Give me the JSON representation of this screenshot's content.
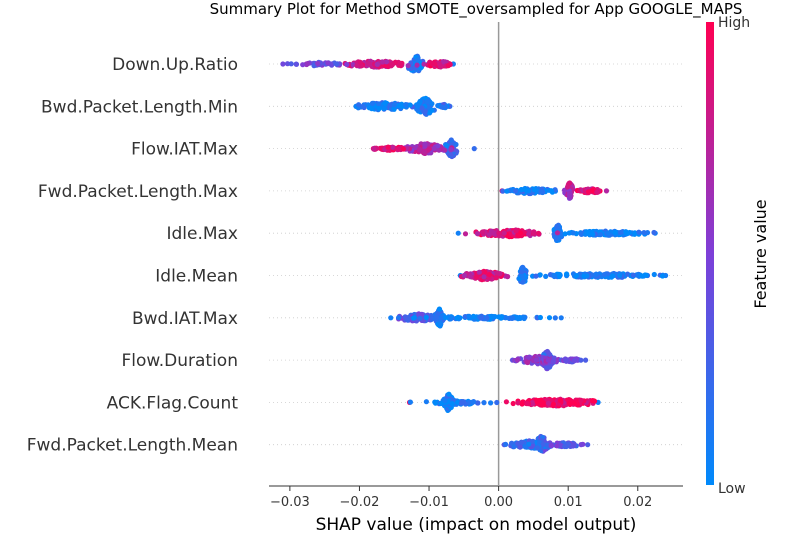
{
  "chart_data": {
    "type": "scatter",
    "title": "Summary Plot for Method SMOTE_oversampled for App GOOGLE_MAPS",
    "xlabel": "SHAP value (impact on model output)",
    "ylabel": "",
    "xlim": [
      -0.033,
      0.0265
    ],
    "x_ticks": [
      {
        "value": -0.03,
        "label": "−0.03"
      },
      {
        "value": -0.02,
        "label": "−0.02"
      },
      {
        "value": -0.01,
        "label": "−0.01"
      },
      {
        "value": 0.0,
        "label": "0.00"
      },
      {
        "value": 0.01,
        "label": "0.01"
      },
      {
        "value": 0.02,
        "label": "0.02"
      }
    ],
    "features": [
      {
        "name": "Down.Up.Ratio",
        "min": -0.031,
        "max": -0.0065,
        "clusters": [
          {
            "x": -0.0118,
            "w": 0.0012,
            "n": 55,
            "spread": 1.0,
            "fv": 0.1
          },
          {
            "x": -0.0175,
            "w": 0.005,
            "n": 120,
            "spread": 0.35,
            "fv": 0.78
          },
          {
            "x": -0.0085,
            "w": 0.0018,
            "n": 60,
            "spread": 0.35,
            "fv": 0.85
          },
          {
            "x": -0.026,
            "w": 0.0035,
            "n": 40,
            "spread": 0.2,
            "fv": 0.45
          }
        ]
      },
      {
        "name": "Bwd.Packet.Length.Min",
        "min": -0.0205,
        "max": -0.007,
        "clusters": [
          {
            "x": -0.0105,
            "w": 0.0012,
            "n": 70,
            "spread": 1.0,
            "fv": 0.08
          },
          {
            "x": -0.0165,
            "w": 0.0035,
            "n": 100,
            "spread": 0.45,
            "fv": 0.1
          },
          {
            "x": -0.0078,
            "w": 0.0008,
            "n": 20,
            "spread": 0.25,
            "fv": 0.15
          }
        ]
      },
      {
        "name": "Flow.IAT.Max",
        "min": -0.018,
        "max": -0.0035,
        "clusters": [
          {
            "x": -0.0068,
            "w": 0.0008,
            "n": 70,
            "spread": 1.0,
            "fv": 0.2
          },
          {
            "x": -0.0105,
            "w": 0.0025,
            "n": 110,
            "spread": 0.6,
            "fv": 0.65
          },
          {
            "x": -0.0155,
            "w": 0.0022,
            "n": 60,
            "spread": 0.2,
            "fv": 0.88
          }
        ]
      },
      {
        "name": "Fwd.Packet.Length.Max",
        "min": 0.0005,
        "max": 0.0155,
        "clusters": [
          {
            "x": 0.0102,
            "w": 0.0005,
            "n": 60,
            "spread": 1.0,
            "fv": 0.7
          },
          {
            "x": 0.0045,
            "w": 0.0035,
            "n": 90,
            "spread": 0.3,
            "fv": 0.08
          },
          {
            "x": 0.0132,
            "w": 0.0018,
            "n": 55,
            "spread": 0.25,
            "fv": 0.88
          }
        ]
      },
      {
        "name": "Idle.Max",
        "min": -0.0058,
        "max": 0.0225,
        "clusters": [
          {
            "x": 0.0085,
            "w": 0.0005,
            "n": 70,
            "spread": 1.0,
            "fv": 0.06
          },
          {
            "x": 0.0015,
            "w": 0.0045,
            "n": 130,
            "spread": 0.4,
            "fv": 0.85
          },
          {
            "x": 0.0155,
            "w": 0.0055,
            "n": 120,
            "spread": 0.25,
            "fv": 0.07
          }
        ]
      },
      {
        "name": "Idle.Mean",
        "min": -0.0055,
        "max": 0.024,
        "clusters": [
          {
            "x": 0.0035,
            "w": 0.0005,
            "n": 75,
            "spread": 1.0,
            "fv": 0.08
          },
          {
            "x": -0.002,
            "w": 0.0025,
            "n": 120,
            "spread": 0.5,
            "fv": 0.8
          },
          {
            "x": 0.0145,
            "w": 0.0085,
            "n": 140,
            "spread": 0.25,
            "fv": 0.07
          }
        ]
      },
      {
        "name": "Bwd.IAT.Max",
        "min": -0.0155,
        "max": 0.009,
        "clusters": [
          {
            "x": -0.0085,
            "w": 0.0006,
            "n": 60,
            "spread": 1.0,
            "fv": 0.1
          },
          {
            "x": -0.0115,
            "w": 0.0025,
            "n": 70,
            "spread": 0.45,
            "fv": 0.35
          },
          {
            "x": -0.0025,
            "w": 0.0085,
            "n": 100,
            "spread": 0.18,
            "fv": 0.07
          }
        ]
      },
      {
        "name": "Flow.Duration",
        "min": 0.002,
        "max": 0.0125,
        "clusters": [
          {
            "x": 0.007,
            "w": 0.0008,
            "n": 75,
            "spread": 1.0,
            "fv": 0.3
          },
          {
            "x": 0.0055,
            "w": 0.0028,
            "n": 80,
            "spread": 0.45,
            "fv": 0.55
          },
          {
            "x": 0.0105,
            "w": 0.0015,
            "n": 30,
            "spread": 0.2,
            "fv": 0.4
          }
        ]
      },
      {
        "name": "ACK.Flag.Count",
        "min": -0.0128,
        "max": 0.0143,
        "clusters": [
          {
            "x": -0.0072,
            "w": 0.0006,
            "n": 60,
            "spread": 1.0,
            "fv": 0.07
          },
          {
            "x": -0.0065,
            "w": 0.0045,
            "n": 70,
            "spread": 0.25,
            "fv": 0.08
          },
          {
            "x": 0.0085,
            "w": 0.0055,
            "n": 170,
            "spread": 0.4,
            "fv": 0.94
          }
        ]
      },
      {
        "name": "Fwd.Packet.Length.Mean",
        "min": 0.0008,
        "max": 0.0128,
        "clusters": [
          {
            "x": 0.0062,
            "w": 0.0008,
            "n": 75,
            "spread": 1.0,
            "fv": 0.3
          },
          {
            "x": 0.0045,
            "w": 0.003,
            "n": 90,
            "spread": 0.45,
            "fv": 0.2
          },
          {
            "x": 0.0095,
            "w": 0.002,
            "n": 50,
            "spread": 0.25,
            "fv": 0.35
          }
        ]
      }
    ],
    "colorbar": {
      "label": "Feature value",
      "high_label": "High",
      "low_label": "Low",
      "low_color": "#008afb",
      "mid_color": "#7e3fd8",
      "high_color": "#ff0052"
    },
    "zero_line_color": "#999999",
    "grid": false
  }
}
